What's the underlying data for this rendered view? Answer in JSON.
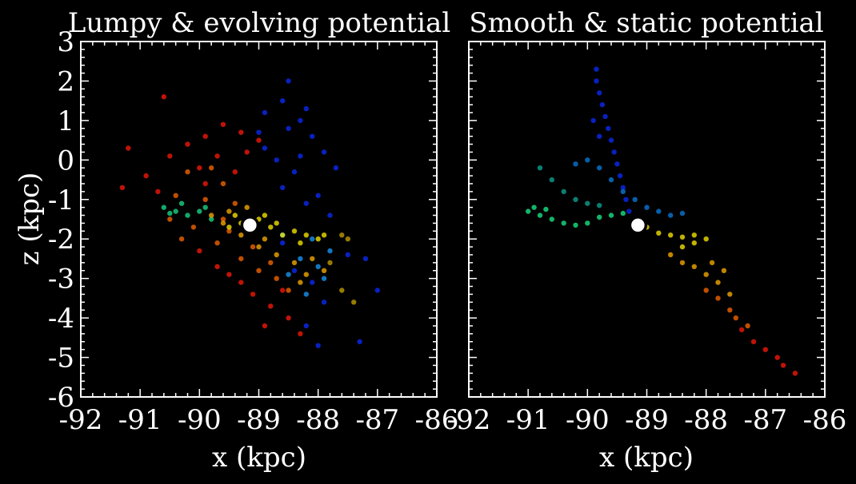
{
  "chart_data": [
    {
      "type": "scatter",
      "title": "Lumpy & evolving potential",
      "xlabel": "x (kpc)",
      "ylabel": "z (kpc)",
      "xlim": [
        -92,
        -86
      ],
      "ylim": [
        -6,
        3
      ],
      "xticks": [
        "-92",
        "-91",
        "-90",
        "-89",
        "-88",
        "-87",
        "-86"
      ],
      "yticks": [
        "-6",
        "-5",
        "-4",
        "-3",
        "-2",
        "-1",
        "0",
        "1",
        "2",
        "3"
      ],
      "grid": false,
      "progenitor": {
        "x": -89.15,
        "z": -1.65
      },
      "series": [
        {
          "color": "#0b2cff",
          "points": [
            [
              -88.9,
              1.2
            ],
            [
              -88.6,
              1.5
            ],
            [
              -88.5,
              2.0
            ],
            [
              -88.3,
              1.0
            ],
            [
              -88.1,
              0.6
            ],
            [
              -87.9,
              0.2
            ],
            [
              -88.4,
              -0.3
            ],
            [
              -88.0,
              -0.9
            ],
            [
              -87.8,
              -1.4
            ],
            [
              -88.2,
              -1.1
            ],
            [
              -88.6,
              -0.7
            ],
            [
              -88.9,
              0.3
            ],
            [
              -88.5,
              0.8
            ],
            [
              -88.2,
              1.3
            ],
            [
              -87.7,
              -0.2
            ],
            [
              -87.5,
              -2.4
            ],
            [
              -87.2,
              -2.5
            ],
            [
              -87.0,
              -3.3
            ],
            [
              -87.3,
              -4.6
            ],
            [
              -88.0,
              -4.7
            ],
            [
              -88.2,
              -4.2
            ],
            [
              -87.9,
              -3.6
            ],
            [
              -88.4,
              -2.8
            ],
            [
              -88.1,
              -3.1
            ],
            [
              -88.6,
              -2.1
            ],
            [
              -88.7,
              0.0
            ],
            [
              -89.0,
              0.7
            ],
            [
              -88.3,
              0.1
            ]
          ]
        },
        {
          "color": "#1a9cff",
          "points": [
            [
              -88.3,
              -2.5
            ],
            [
              -88.0,
              -2.7
            ],
            [
              -87.8,
              -2.3
            ],
            [
              -88.5,
              -2.9
            ],
            [
              -88.2,
              -3.4
            ],
            [
              -87.9,
              -3.0
            ],
            [
              -88.6,
              -1.9
            ],
            [
              -88.1,
              -2.0
            ]
          ]
        },
        {
          "color": "#19e08c",
          "points": [
            [
              -90.6,
              -1.2
            ],
            [
              -90.4,
              -1.3
            ],
            [
              -90.2,
              -1.4
            ],
            [
              -90.0,
              -1.3
            ],
            [
              -89.8,
              -1.5
            ],
            [
              -90.3,
              -1.1
            ],
            [
              -90.5,
              -1.35
            ],
            [
              -89.9,
              -1.2
            ]
          ]
        },
        {
          "color": "#ff1a0a",
          "points": [
            [
              -91.2,
              0.3
            ],
            [
              -90.9,
              -0.4
            ],
            [
              -90.7,
              -0.8
            ],
            [
              -90.5,
              0.1
            ],
            [
              -90.2,
              0.4
            ],
            [
              -89.9,
              0.6
            ],
            [
              -89.6,
              0.9
            ],
            [
              -89.3,
              0.7
            ],
            [
              -89.0,
              0.5
            ],
            [
              -89.7,
              0.1
            ],
            [
              -89.4,
              -0.3
            ],
            [
              -90.6,
              1.6
            ],
            [
              -91.3,
              -0.7
            ],
            [
              -90.0,
              -0.2
            ],
            [
              -89.5,
              -2.9
            ],
            [
              -89.1,
              -3.4
            ],
            [
              -88.8,
              -3.7
            ],
            [
              -88.5,
              -4.0
            ],
            [
              -88.3,
              -4.4
            ],
            [
              -89.3,
              -3.1
            ],
            [
              -88.9,
              -4.2
            ],
            [
              -89.7,
              -2.7
            ],
            [
              -90.0,
              -2.3
            ],
            [
              -88.6,
              -3.3
            ],
            [
              -89.2,
              0.2
            ],
            [
              -89.9,
              -0.6
            ]
          ]
        },
        {
          "color": "#ff6a00",
          "points": [
            [
              -90.4,
              -0.9
            ],
            [
              -90.1,
              -1.7
            ],
            [
              -89.9,
              -1.0
            ],
            [
              -89.6,
              -0.6
            ],
            [
              -89.4,
              -1.1
            ],
            [
              -90.2,
              -0.3
            ],
            [
              -89.8,
              -0.2
            ],
            [
              -90.5,
              -1.5
            ],
            [
              -89.7,
              -2.1
            ],
            [
              -89.3,
              -2.5
            ],
            [
              -89.0,
              -2.8
            ],
            [
              -88.7,
              -3.0
            ],
            [
              -88.5,
              -3.3
            ],
            [
              -89.1,
              -2.2
            ],
            [
              -88.8,
              -2.6
            ],
            [
              -89.5,
              -1.8
            ],
            [
              -90.3,
              -2.0
            ],
            [
              -89.6,
              -1.5
            ]
          ]
        },
        {
          "color": "#ffb000",
          "points": [
            [
              -89.6,
              -1.6
            ],
            [
              -89.3,
              -1.9
            ],
            [
              -89.0,
              -2.2
            ],
            [
              -88.7,
              -2.4
            ],
            [
              -88.4,
              -2.6
            ],
            [
              -88.2,
              -2.9
            ],
            [
              -89.8,
              -1.4
            ],
            [
              -89.5,
              -1.3
            ],
            [
              -89.2,
              -1.2
            ],
            [
              -88.9,
              -2.0
            ],
            [
              -88.1,
              -2.5
            ],
            [
              -87.9,
              -2.8
            ],
            [
              -88.3,
              -3.1
            ]
          ]
        },
        {
          "color": "#ffee00",
          "points": [
            [
              -89.3,
              -1.6
            ],
            [
              -89.0,
              -1.5
            ],
            [
              -88.8,
              -1.7
            ],
            [
              -88.6,
              -1.9
            ],
            [
              -88.4,
              -1.8
            ],
            [
              -88.2,
              -1.9
            ],
            [
              -88.0,
              -2.0
            ],
            [
              -89.5,
              -1.7
            ],
            [
              -89.1,
              -1.8
            ],
            [
              -88.7,
              -1.6
            ],
            [
              -88.3,
              -2.1
            ],
            [
              -87.9,
              -1.9
            ],
            [
              -89.4,
              -1.4
            ],
            [
              -88.9,
              -1.4
            ]
          ]
        },
        {
          "color": "#c9a400",
          "points": [
            [
              -87.6,
              -1.9
            ],
            [
              -87.5,
              -2.0
            ],
            [
              -87.8,
              -2.6
            ],
            [
              -87.6,
              -3.3
            ],
            [
              -87.4,
              -3.6
            ]
          ]
        }
      ]
    },
    {
      "type": "scatter",
      "title": "Smooth & static potential",
      "xlabel": "x (kpc)",
      "ylabel": "",
      "xlim": [
        -92,
        -86
      ],
      "ylim": [
        -6,
        3
      ],
      "xticks": [
        "-92",
        "-91",
        "-90",
        "-89",
        "-88",
        "-87",
        "-86"
      ],
      "yticks": [],
      "grid": false,
      "progenitor": {
        "x": -89.15,
        "z": -1.65
      },
      "series": [
        {
          "color": "#0b2cff",
          "points": [
            [
              -89.85,
              2.3
            ],
            [
              -89.85,
              2.0
            ],
            [
              -89.8,
              1.7
            ],
            [
              -89.75,
              1.4
            ],
            [
              -89.7,
              1.1
            ],
            [
              -89.65,
              0.8
            ],
            [
              -89.6,
              0.5
            ],
            [
              -89.55,
              0.2
            ],
            [
              -89.5,
              -0.1
            ],
            [
              -89.45,
              -0.4
            ],
            [
              -89.4,
              -0.7
            ],
            [
              -89.35,
              -1.0
            ],
            [
              -89.3,
              -1.3
            ],
            [
              -89.9,
              1.0
            ],
            [
              -89.8,
              0.6
            ]
          ]
        },
        {
          "color": "#0a7ee0",
          "points": [
            [
              -90.2,
              -0.1
            ],
            [
              -90.0,
              0.0
            ],
            [
              -89.8,
              -0.2
            ],
            [
              -89.6,
              -0.5
            ],
            [
              -89.4,
              -0.8
            ],
            [
              -89.2,
              -1.0
            ],
            [
              -89.0,
              -1.2
            ],
            [
              -88.8,
              -1.3
            ],
            [
              -88.6,
              -1.4
            ],
            [
              -88.4,
              -1.35
            ]
          ]
        },
        {
          "color": "#0fa89a",
          "points": [
            [
              -90.8,
              -0.2
            ],
            [
              -90.6,
              -0.5
            ],
            [
              -90.4,
              -0.8
            ],
            [
              -90.2,
              -1.0
            ],
            [
              -90.0,
              -1.1
            ],
            [
              -89.8,
              -1.15
            ]
          ]
        },
        {
          "color": "#19f08c",
          "points": [
            [
              -91.0,
              -1.3
            ],
            [
              -90.8,
              -1.4
            ],
            [
              -90.6,
              -1.5
            ],
            [
              -90.4,
              -1.6
            ],
            [
              -90.2,
              -1.65
            ],
            [
              -90.0,
              -1.6
            ],
            [
              -89.8,
              -1.45
            ],
            [
              -89.6,
              -1.4
            ],
            [
              -89.4,
              -1.35
            ],
            [
              -90.9,
              -1.2
            ],
            [
              -90.7,
              -1.25
            ]
          ]
        },
        {
          "color": "#ffee00",
          "points": [
            [
              -89.0,
              -1.7
            ],
            [
              -88.8,
              -1.85
            ],
            [
              -88.6,
              -1.9
            ],
            [
              -88.4,
              -1.95
            ],
            [
              -88.2,
              -1.9
            ],
            [
              -88.0,
              -2.0
            ],
            [
              -88.2,
              -2.1
            ],
            [
              -88.4,
              -2.2
            ]
          ]
        },
        {
          "color": "#ffb000",
          "points": [
            [
              -88.6,
              -2.4
            ],
            [
              -88.4,
              -2.6
            ],
            [
              -88.2,
              -2.7
            ],
            [
              -88.0,
              -2.9
            ],
            [
              -87.8,
              -3.1
            ],
            [
              -87.6,
              -3.4
            ],
            [
              -87.9,
              -2.6
            ],
            [
              -87.7,
              -2.8
            ]
          ]
        },
        {
          "color": "#ff6a00",
          "points": [
            [
              -88.0,
              -3.3
            ],
            [
              -87.8,
              -3.5
            ],
            [
              -87.6,
              -3.8
            ],
            [
              -87.5,
              -4.0
            ],
            [
              -87.3,
              -4.2
            ]
          ]
        },
        {
          "color": "#ff1a0a",
          "points": [
            [
              -87.4,
              -4.3
            ],
            [
              -87.2,
              -4.6
            ],
            [
              -87.0,
              -4.8
            ],
            [
              -86.8,
              -5.0
            ],
            [
              -86.7,
              -5.2
            ],
            [
              -86.5,
              -5.4
            ]
          ]
        }
      ]
    }
  ]
}
